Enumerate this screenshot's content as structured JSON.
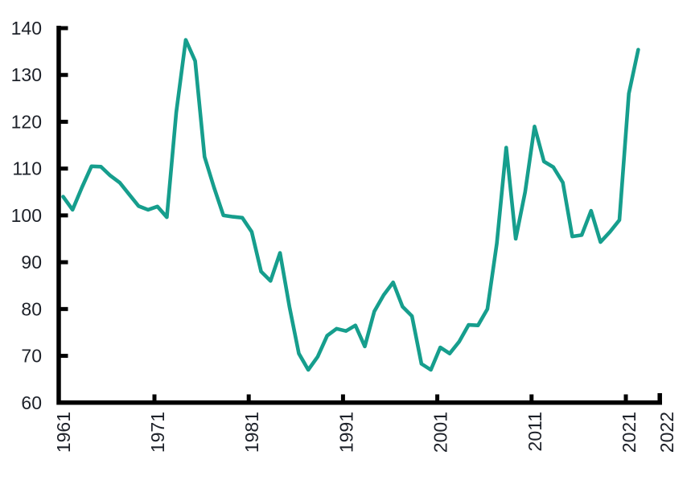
{
  "chart_data": {
    "type": "line",
    "title": "",
    "xlabel": "",
    "ylabel": "",
    "x": [
      1961,
      1962,
      1963,
      1964,
      1965,
      1966,
      1967,
      1968,
      1969,
      1970,
      1971,
      1972,
      1973,
      1974,
      1975,
      1976,
      1977,
      1978,
      1979,
      1980,
      1981,
      1982,
      1983,
      1984,
      1985,
      1986,
      1987,
      1988,
      1989,
      1990,
      1991,
      1992,
      1993,
      1994,
      1995,
      1996,
      1997,
      1998,
      1999,
      2000,
      2001,
      2002,
      2003,
      2004,
      2005,
      2006,
      2007,
      2008,
      2009,
      2010,
      2011,
      2012,
      2013,
      2014,
      2015,
      2016,
      2017,
      2018,
      2019,
      2020,
      2021,
      2022
    ],
    "values": [
      104,
      101.2,
      106,
      110.5,
      110.4,
      108.5,
      107,
      104.5,
      102,
      101.2,
      101.9,
      99.6,
      122,
      137.5,
      133,
      112.5,
      106,
      100,
      99.7,
      99.5,
      96.5,
      88,
      86,
      92,
      80.5,
      70.5,
      67,
      69.8,
      74.3,
      75.8,
      75.3,
      76.5,
      72,
      79.5,
      83,
      85.7,
      80.5,
      78.5,
      68.3,
      67,
      71.8,
      70.5,
      73,
      76.6,
      76.5,
      80,
      94,
      114.5,
      95,
      105,
      119,
      111.5,
      110.3,
      107,
      95.5,
      95.8,
      101,
      94.3,
      96.5,
      99,
      126,
      135.4
    ],
    "ylim": [
      60,
      140
    ],
    "xlim": [
      1961,
      2022
    ],
    "y_ticks": [
      60,
      70,
      80,
      90,
      100,
      110,
      120,
      130,
      140
    ],
    "x_tick_labels": [
      "1961",
      "1971",
      "1981",
      "1991",
      "2001",
      "2011",
      "2021",
      "2022"
    ],
    "grid": false,
    "legend": "none",
    "line_color": "#169E8D",
    "axis_color": "#000000",
    "tick_label_color": "#1D2129"
  }
}
